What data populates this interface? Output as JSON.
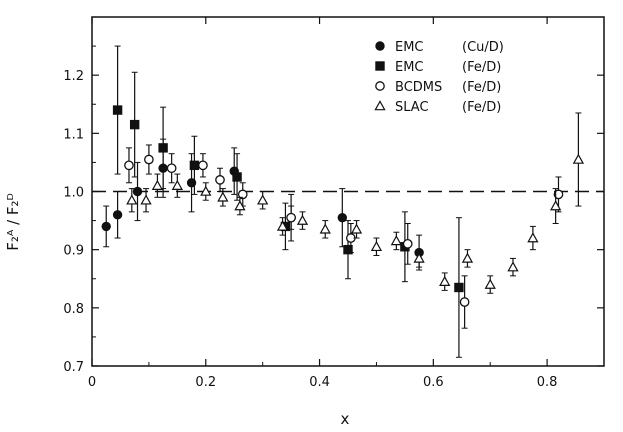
{
  "chart_data": {
    "type": "scatter",
    "title": "",
    "xlabel": "x",
    "ylabel": "F₂ᴬ / F₂ᴰ",
    "xlim": [
      0,
      0.9
    ],
    "ylim": [
      0.7,
      1.3
    ],
    "x_ticks": [
      0,
      0.2,
      0.4,
      0.6,
      0.8
    ],
    "x_tick_labels": [
      "0",
      "0.2",
      "0.4",
      "0.6",
      "0.8"
    ],
    "y_ticks": [
      0.7,
      0.8,
      0.9,
      1.0,
      1.1,
      1.2
    ],
    "y_tick_labels": [
      "0.7",
      "0.8",
      "0.9",
      "1.0",
      "1.1",
      "1.2"
    ],
    "grid": false,
    "legend_position": "top-right",
    "reference_line": {
      "y": 1.0,
      "style": "dashed"
    },
    "series": [
      {
        "name": "EMC",
        "target": "(Cu/D)",
        "marker": "filled-circle",
        "points": [
          {
            "x": 0.025,
            "y": 0.94,
            "err": 0.035
          },
          {
            "x": 0.045,
            "y": 0.96,
            "err": 0.04
          },
          {
            "x": 0.08,
            "y": 1.0,
            "err": 0.05
          },
          {
            "x": 0.125,
            "y": 1.04,
            "err": 0.05
          },
          {
            "x": 0.175,
            "y": 1.015,
            "err": 0.05
          },
          {
            "x": 0.25,
            "y": 1.035,
            "err": 0.04
          },
          {
            "x": 0.35,
            "y": 0.955,
            "err": 0.04
          },
          {
            "x": 0.44,
            "y": 0.955,
            "err": 0.05
          },
          {
            "x": 0.575,
            "y": 0.895,
            "err": 0.03
          }
        ]
      },
      {
        "name": "EMC",
        "target": "(Fe/D)",
        "marker": "filled-square",
        "points": [
          {
            "x": 0.045,
            "y": 1.14,
            "err": 0.11
          },
          {
            "x": 0.075,
            "y": 1.115,
            "err": 0.09
          },
          {
            "x": 0.125,
            "y": 1.075,
            "err": 0.07
          },
          {
            "x": 0.18,
            "y": 1.045,
            "err": 0.05
          },
          {
            "x": 0.255,
            "y": 1.025,
            "err": 0.04
          },
          {
            "x": 0.34,
            "y": 0.94,
            "err": 0.04
          },
          {
            "x": 0.45,
            "y": 0.9,
            "err": 0.05
          },
          {
            "x": 0.55,
            "y": 0.905,
            "err": 0.06
          },
          {
            "x": 0.645,
            "y": 0.835,
            "err": 0.12
          }
        ]
      },
      {
        "name": "BCDMS",
        "target": "(Fe/D)",
        "marker": "open-circle",
        "points": [
          {
            "x": 0.065,
            "y": 1.045,
            "err": 0.03
          },
          {
            "x": 0.1,
            "y": 1.055,
            "err": 0.025
          },
          {
            "x": 0.14,
            "y": 1.04,
            "err": 0.025
          },
          {
            "x": 0.195,
            "y": 1.045,
            "err": 0.02
          },
          {
            "x": 0.225,
            "y": 1.02,
            "err": 0.02
          },
          {
            "x": 0.265,
            "y": 0.995,
            "err": 0.02
          },
          {
            "x": 0.35,
            "y": 0.955,
            "err": 0.02
          },
          {
            "x": 0.455,
            "y": 0.92,
            "err": 0.025
          },
          {
            "x": 0.555,
            "y": 0.91,
            "err": 0.035
          },
          {
            "x": 0.655,
            "y": 0.81,
            "err": 0.045
          },
          {
            "x": 0.82,
            "y": 0.995,
            "err": 0.03
          }
        ]
      },
      {
        "name": "SLAC",
        "target": "(Fe/D)",
        "marker": "open-triangle",
        "points": [
          {
            "x": 0.07,
            "y": 0.985,
            "err": 0.02
          },
          {
            "x": 0.095,
            "y": 0.985,
            "err": 0.02
          },
          {
            "x": 0.115,
            "y": 1.01,
            "err": 0.02
          },
          {
            "x": 0.15,
            "y": 1.01,
            "err": 0.02
          },
          {
            "x": 0.2,
            "y": 1.0,
            "err": 0.015
          },
          {
            "x": 0.23,
            "y": 0.99,
            "err": 0.015
          },
          {
            "x": 0.26,
            "y": 0.975,
            "err": 0.015
          },
          {
            "x": 0.3,
            "y": 0.985,
            "err": 0.015
          },
          {
            "x": 0.335,
            "y": 0.94,
            "err": 0.015
          },
          {
            "x": 0.37,
            "y": 0.95,
            "err": 0.015
          },
          {
            "x": 0.41,
            "y": 0.935,
            "err": 0.015
          },
          {
            "x": 0.465,
            "y": 0.935,
            "err": 0.015
          },
          {
            "x": 0.5,
            "y": 0.905,
            "err": 0.015
          },
          {
            "x": 0.535,
            "y": 0.915,
            "err": 0.015
          },
          {
            "x": 0.575,
            "y": 0.885,
            "err": 0.015
          },
          {
            "x": 0.62,
            "y": 0.845,
            "err": 0.015
          },
          {
            "x": 0.66,
            "y": 0.885,
            "err": 0.015
          },
          {
            "x": 0.7,
            "y": 0.84,
            "err": 0.015
          },
          {
            "x": 0.74,
            "y": 0.87,
            "err": 0.015
          },
          {
            "x": 0.775,
            "y": 0.92,
            "err": 0.02
          },
          {
            "x": 0.815,
            "y": 0.975,
            "err": 0.03
          },
          {
            "x": 0.855,
            "y": 1.055,
            "err": 0.08
          }
        ]
      }
    ]
  }
}
